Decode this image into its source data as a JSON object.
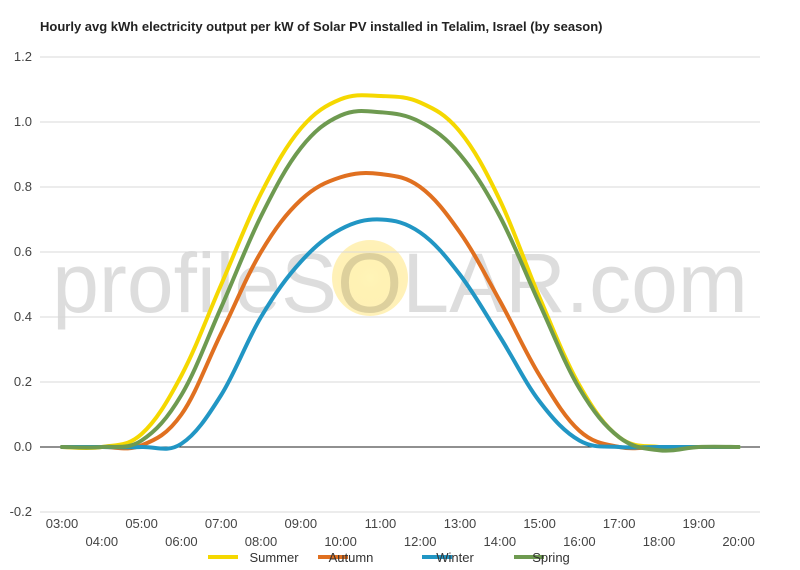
{
  "chart_data": {
    "type": "line",
    "title": "Hourly avg kWh electricity output per kW of Solar PV installed in Telalim, Israel (by season)",
    "xlabel": "",
    "ylabel": "",
    "x": [
      "03:00",
      "04:00",
      "05:00",
      "06:00",
      "07:00",
      "08:00",
      "09:00",
      "10:00",
      "11:00",
      "12:00",
      "13:00",
      "14:00",
      "15:00",
      "16:00",
      "17:00",
      "18:00",
      "19:00",
      "20:00"
    ],
    "ylim": [
      -0.2,
      1.2
    ],
    "yticks": [
      "-0.2",
      "0.0",
      "0.2",
      "0.4",
      "0.6",
      "0.8",
      "1.0",
      "1.2"
    ],
    "grid": true,
    "legend": "bottom",
    "watermark": "profileSOLAR.com",
    "series": [
      {
        "name": "Summer",
        "color": "#f5d800",
        "values": [
          0,
          0,
          0.04,
          0.22,
          0.5,
          0.78,
          0.98,
          1.07,
          1.08,
          1.06,
          0.97,
          0.76,
          0.46,
          0.19,
          0.03,
          0,
          0,
          0
        ]
      },
      {
        "name": "Autumn",
        "color": "#e07020",
        "values": [
          0,
          0,
          0.005,
          0.1,
          0.35,
          0.6,
          0.76,
          0.83,
          0.84,
          0.8,
          0.66,
          0.45,
          0.22,
          0.05,
          0,
          0,
          0,
          0
        ]
      },
      {
        "name": "Winter",
        "color": "#2196c4",
        "values": [
          0,
          0,
          0,
          0.01,
          0.16,
          0.4,
          0.57,
          0.67,
          0.7,
          0.66,
          0.53,
          0.34,
          0.14,
          0.02,
          0,
          0,
          0,
          0
        ]
      },
      {
        "name": "Spring",
        "color": "#6e9a50",
        "values": [
          0,
          0,
          0.02,
          0.16,
          0.43,
          0.71,
          0.92,
          1.02,
          1.03,
          1.0,
          0.9,
          0.71,
          0.44,
          0.18,
          0.03,
          -0.01,
          0,
          0
        ]
      }
    ]
  }
}
